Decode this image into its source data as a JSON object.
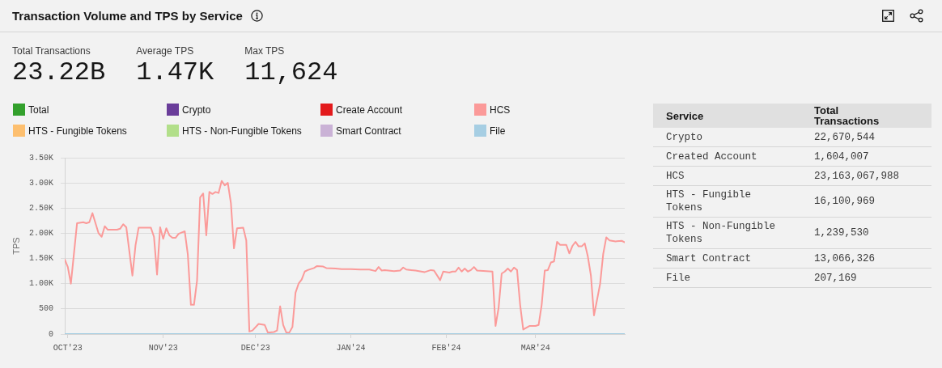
{
  "chart_data": [
    {
      "type": "other",
      "title": "Transaction Volume and TPS by Service",
      "categories": [
        "Total Transactions",
        "Average TPS",
        "Max TPS"
      ],
      "value_labels": [
        "23.22B",
        "1.47K",
        "11,624"
      ]
    },
    {
      "type": "line",
      "ylabel": "TPS",
      "grid": "y",
      "legend": "top",
      "x": [
        "2023-09-30",
        "2023-10-01",
        "2023-10-02",
        "2023-10-04",
        "2023-10-06",
        "2023-10-07",
        "2023-10-08",
        "2023-10-09",
        "2023-10-11",
        "2023-10-12",
        "2023-10-13",
        "2023-10-14",
        "2023-10-17",
        "2023-10-18",
        "2023-10-19",
        "2023-10-20",
        "2023-10-22",
        "2023-10-23",
        "2023-10-24",
        "2023-10-28",
        "2023-10-29",
        "2023-10-30",
        "2023-10-31",
        "2023-11-01",
        "2023-11-02",
        "2023-11-03",
        "2023-11-04",
        "2023-11-05",
        "2023-11-06",
        "2023-11-08",
        "2023-11-09",
        "2023-11-10",
        "2023-11-11",
        "2023-11-12",
        "2023-11-13",
        "2023-11-14",
        "2023-11-15",
        "2023-11-16",
        "2023-11-17",
        "2023-11-18",
        "2023-11-19",
        "2023-11-20",
        "2023-11-21",
        "2023-11-22",
        "2023-11-23",
        "2023-11-24",
        "2023-11-25",
        "2023-11-27",
        "2023-11-28",
        "2023-11-29",
        "2023-11-30",
        "2023-12-02",
        "2023-12-04",
        "2023-12-05",
        "2023-12-07",
        "2023-12-08",
        "2023-12-09",
        "2023-12-10",
        "2023-12-11",
        "2023-12-12",
        "2023-12-13",
        "2023-12-14",
        "2023-12-15",
        "2023-12-16",
        "2023-12-17",
        "2023-12-18",
        "2023-12-20",
        "2023-12-21",
        "2023-12-23",
        "2023-12-24",
        "2023-12-27",
        "2023-12-29",
        "2024-01-01",
        "2024-01-04",
        "2024-01-07",
        "2024-01-09",
        "2024-01-10",
        "2024-01-11",
        "2024-01-12",
        "2024-01-15",
        "2024-01-17",
        "2024-01-18",
        "2024-01-19",
        "2024-01-22",
        "2024-01-25",
        "2024-01-27",
        "2024-01-28",
        "2024-01-30",
        "2024-01-31",
        "2024-02-02",
        "2024-02-03",
        "2024-02-04",
        "2024-02-05",
        "2024-02-06",
        "2024-02-07",
        "2024-02-08",
        "2024-02-09",
        "2024-02-10",
        "2024-02-11",
        "2024-02-14",
        "2024-02-16",
        "2024-02-17",
        "2024-02-18",
        "2024-02-19",
        "2024-02-20",
        "2024-02-21",
        "2024-02-22",
        "2024-02-23",
        "2024-02-24",
        "2024-02-25",
        "2024-02-26",
        "2024-02-28",
        "2024-03-01",
        "2024-03-02",
        "2024-03-03",
        "2024-03-04",
        "2024-03-05",
        "2024-03-06",
        "2024-03-07",
        "2024-03-08",
        "2024-03-09",
        "2024-03-11",
        "2024-03-12",
        "2024-03-13",
        "2024-03-14",
        "2024-03-15",
        "2024-03-16",
        "2024-03-17",
        "2024-03-18",
        "2024-03-19",
        "2024-03-20",
        "2024-03-21",
        "2024-03-22",
        "2024-03-23",
        "2024-03-24",
        "2024-03-25",
        "2024-03-27",
        "2024-03-29",
        "2024-03-30"
      ],
      "xlim": [
        "2023-09-30",
        "2024-03-30"
      ],
      "xticks": [
        {
          "value": "2023-10-01",
          "label": "OCT'23"
        },
        {
          "value": "2023-11-01",
          "label": "NOV'23"
        },
        {
          "value": "2023-12-01",
          "label": "DEC'23"
        },
        {
          "value": "2024-01-01",
          "label": "JAN'24"
        },
        {
          "value": "2024-02-01",
          "label": "FEB'24"
        },
        {
          "value": "2024-03-01",
          "label": "MAR'24"
        }
      ],
      "ylim": [
        0,
        3500
      ],
      "yticks": [
        0,
        500,
        {
          "value": 1000,
          "label": "1.00K"
        },
        {
          "value": 1500,
          "label": "1.50K"
        },
        {
          "value": 2000,
          "label": "2.00K"
        },
        {
          "value": 2500,
          "label": "2.50K"
        },
        {
          "value": 3000,
          "label": "3.00K"
        },
        {
          "value": 3500,
          "label": "3.50K"
        }
      ],
      "series": [
        {
          "name": "Total",
          "color": "#33a02c",
          "values": [
            null,
            null,
            null,
            null,
            null,
            null,
            null,
            null,
            null,
            null,
            null,
            null,
            null,
            null,
            null,
            null,
            null,
            null,
            null,
            null,
            null,
            null,
            null,
            null,
            null,
            null,
            null,
            null,
            null,
            null,
            null,
            null,
            null,
            null,
            null,
            null,
            null,
            null,
            null,
            null,
            null,
            null,
            null,
            null,
            null,
            null,
            null,
            null,
            null,
            null,
            null,
            null,
            null,
            null,
            null,
            null,
            null,
            null,
            null,
            null,
            null,
            null,
            null,
            null,
            null,
            null,
            null,
            null,
            null,
            null,
            null,
            null,
            null,
            null,
            null,
            null,
            null,
            null,
            null,
            null,
            null,
            null,
            null,
            null,
            null,
            null,
            null,
            null,
            null,
            null,
            null,
            null,
            null,
            null,
            null,
            null,
            null,
            null,
            null,
            null,
            null,
            null,
            null,
            null,
            null,
            null,
            null,
            null,
            null,
            null,
            null,
            null,
            null,
            null,
            null,
            null,
            null,
            null,
            null,
            null,
            null,
            null,
            null,
            null,
            null,
            null,
            null,
            null,
            null,
            null,
            null,
            null,
            null,
            null,
            null,
            null,
            null,
            null,
            null
          ]
        },
        {
          "name": "Crypto",
          "color": "#6a3d9a",
          "values": [
            null,
            null,
            null,
            null,
            null,
            null,
            null,
            null,
            null,
            null,
            null,
            null,
            null,
            null,
            null,
            null,
            null,
            null,
            null,
            null,
            null,
            null,
            null,
            null,
            null,
            null,
            null,
            null,
            null,
            null,
            null,
            null,
            null,
            null,
            null,
            null,
            null,
            null,
            null,
            null,
            null,
            null,
            null,
            null,
            null,
            null,
            null,
            null,
            null,
            null,
            null,
            null,
            null,
            null,
            null,
            null,
            null,
            null,
            null,
            null,
            null,
            null,
            null,
            null,
            null,
            null,
            null,
            null,
            null,
            null,
            null,
            null,
            null,
            null,
            null,
            null,
            null,
            null,
            null,
            null,
            null,
            null,
            null,
            null,
            null,
            null,
            null,
            null,
            null,
            null,
            null,
            null,
            null,
            null,
            null,
            null,
            null,
            null,
            null,
            null,
            null,
            null,
            null,
            null,
            null,
            null,
            null,
            null,
            null,
            null,
            null,
            null,
            null,
            null,
            null,
            null,
            null,
            null,
            null,
            null,
            null,
            null,
            null,
            null,
            null,
            null,
            null,
            null,
            null,
            null,
            null,
            null,
            null,
            null,
            null,
            null,
            null,
            null,
            null
          ]
        },
        {
          "name": "Create Account",
          "color": "#e31a1c",
          "values": [
            null,
            null,
            null,
            null,
            null,
            null,
            null,
            null,
            null,
            null,
            null,
            null,
            null,
            null,
            null,
            null,
            null,
            null,
            null,
            null,
            null,
            null,
            null,
            null,
            null,
            null,
            null,
            null,
            null,
            null,
            null,
            null,
            null,
            null,
            null,
            null,
            null,
            null,
            null,
            null,
            null,
            null,
            null,
            null,
            null,
            null,
            null,
            null,
            null,
            null,
            null,
            null,
            null,
            null,
            null,
            null,
            null,
            null,
            null,
            null,
            null,
            null,
            null,
            null,
            null,
            null,
            null,
            null,
            null,
            null,
            null,
            null,
            null,
            null,
            null,
            null,
            null,
            null,
            null,
            null,
            null,
            null,
            null,
            null,
            null,
            null,
            null,
            null,
            null,
            null,
            null,
            null,
            null,
            null,
            null,
            null,
            null,
            null,
            null,
            null,
            null,
            null,
            null,
            null,
            null,
            null,
            null,
            null,
            null,
            null,
            null,
            null,
            null,
            null,
            null,
            null,
            null,
            null,
            null,
            null,
            null,
            null,
            null,
            null,
            null,
            null,
            null,
            null,
            null,
            null,
            null,
            null,
            null,
            null,
            null,
            null,
            null,
            null,
            null
          ]
        },
        {
          "name": "HCS",
          "color": "#fb9a99",
          "values": [
            1480,
            1330,
            1000,
            2200,
            2220,
            2200,
            2220,
            2400,
            2000,
            1930,
            2140,
            2070,
            2070,
            2090,
            2180,
            2120,
            1160,
            1760,
            2110,
            2110,
            1930,
            1180,
            2120,
            1890,
            2100,
            1960,
            1910,
            1910,
            1990,
            2040,
            1580,
            580,
            580,
            1060,
            2710,
            2790,
            1960,
            2820,
            2780,
            2820,
            2800,
            3040,
            2950,
            3000,
            2600,
            1700,
            2100,
            2110,
            1860,
            50,
            70,
            200,
            180,
            30,
            40,
            70,
            550,
            180,
            30,
            30,
            140,
            820,
            1000,
            1080,
            1240,
            1270,
            1310,
            1350,
            1340,
            1310,
            1300,
            1290,
            1290,
            1280,
            1280,
            1250,
            1330,
            1260,
            1270,
            1250,
            1260,
            1320,
            1280,
            1260,
            1230,
            1270,
            1260,
            1070,
            1240,
            1220,
            1240,
            1240,
            1320,
            1240,
            1300,
            1240,
            1270,
            1330,
            1260,
            1250,
            1240,
            160,
            520,
            1200,
            1240,
            1300,
            1240,
            1320,
            1270,
            580,
            90,
            160,
            160,
            180,
            580,
            1260,
            1270,
            1420,
            1440,
            1830,
            1770,
            1770,
            1600,
            1750,
            1830,
            1740,
            1740,
            1800,
            1540,
            1160,
            370,
            680,
            1000,
            1590,
            1920,
            1860,
            1840,
            1850,
            1820
          ]
        },
        {
          "name": "HTS - Fungible Tokens",
          "color": "#fdbf6f",
          "values": [
            null,
            null,
            null,
            null,
            null,
            null,
            null,
            null,
            null,
            null,
            null,
            null,
            null,
            null,
            null,
            null,
            null,
            null,
            null,
            null,
            null,
            null,
            null,
            null,
            null,
            null,
            null,
            null,
            null,
            null,
            null,
            null,
            null,
            null,
            null,
            null,
            null,
            null,
            null,
            null,
            null,
            null,
            null,
            null,
            null,
            null,
            null,
            null,
            null,
            null,
            null,
            null,
            null,
            null,
            null,
            null,
            null,
            null,
            null,
            null,
            null,
            null,
            null,
            null,
            null,
            null,
            null,
            null,
            null,
            null,
            null,
            null,
            null,
            null,
            null,
            null,
            null,
            null,
            null,
            null,
            null,
            null,
            null,
            null,
            null,
            null,
            null,
            null,
            null,
            null,
            null,
            null,
            null,
            null,
            null,
            null,
            null,
            null,
            null,
            null,
            null,
            null,
            null,
            null,
            null,
            null,
            null,
            null,
            null,
            null,
            null,
            null,
            null,
            null,
            null,
            null,
            null,
            null,
            null,
            null,
            null,
            null,
            null,
            null,
            null,
            null,
            null,
            null,
            null,
            null,
            null,
            null,
            null,
            null,
            null,
            null,
            null,
            null,
            null
          ]
        },
        {
          "name": "HTS - Non-Fungible Tokens",
          "color": "#b2df8a",
          "values": [
            null,
            null,
            null,
            null,
            null,
            null,
            null,
            null,
            null,
            null,
            null,
            null,
            null,
            null,
            null,
            null,
            null,
            null,
            null,
            null,
            null,
            null,
            null,
            null,
            null,
            null,
            null,
            null,
            null,
            null,
            null,
            null,
            null,
            null,
            null,
            null,
            null,
            null,
            null,
            null,
            null,
            null,
            null,
            null,
            null,
            null,
            null,
            null,
            null,
            null,
            null,
            null,
            null,
            null,
            null,
            null,
            null,
            null,
            null,
            null,
            null,
            null,
            null,
            null,
            null,
            null,
            null,
            null,
            null,
            null,
            null,
            null,
            null,
            null,
            null,
            null,
            null,
            null,
            null,
            null,
            null,
            null,
            null,
            null,
            null,
            null,
            null,
            null,
            null,
            null,
            null,
            null,
            null,
            null,
            null,
            null,
            null,
            null,
            null,
            null,
            null,
            null,
            null,
            null,
            null,
            null,
            null,
            null,
            null,
            null,
            null,
            null,
            null,
            null,
            null,
            null,
            null,
            null,
            null,
            null,
            null,
            null,
            null,
            null,
            null,
            null,
            null,
            null,
            null,
            null,
            null,
            null,
            null,
            null,
            null,
            null,
            null,
            null,
            null
          ]
        },
        {
          "name": "Smart Contract",
          "color": "#cab2d6",
          "values": [
            null,
            null,
            null,
            null,
            null,
            null,
            null,
            null,
            null,
            null,
            null,
            null,
            null,
            null,
            null,
            null,
            null,
            null,
            null,
            null,
            null,
            null,
            null,
            null,
            null,
            null,
            null,
            null,
            null,
            null,
            null,
            null,
            null,
            null,
            null,
            null,
            null,
            null,
            null,
            null,
            null,
            null,
            null,
            null,
            null,
            null,
            null,
            null,
            null,
            null,
            null,
            null,
            null,
            null,
            null,
            null,
            null,
            null,
            null,
            null,
            null,
            null,
            null,
            null,
            null,
            null,
            null,
            null,
            null,
            null,
            null,
            null,
            null,
            null,
            null,
            null,
            null,
            null,
            null,
            null,
            null,
            null,
            null,
            null,
            null,
            null,
            null,
            null,
            null,
            null,
            null,
            null,
            null,
            null,
            null,
            null,
            null,
            null,
            null,
            null,
            null,
            null,
            null,
            null,
            null,
            null,
            null,
            null,
            null,
            null,
            null,
            null,
            null,
            null,
            null,
            null,
            null,
            null,
            null,
            null,
            null,
            null,
            null,
            null,
            null,
            null,
            null,
            null,
            null,
            null,
            null,
            null,
            null,
            null,
            null,
            null,
            null,
            null,
            null
          ]
        },
        {
          "name": "File",
          "color": "#a6cee3",
          "x": [
            "2023-09-30",
            "2024-03-30"
          ],
          "values": [
            0,
            0
          ]
        }
      ]
    },
    {
      "type": "other",
      "xlabel": "Service",
      "ylabel": "Total Transactions",
      "categories": [
        "Crypto",
        "Created Account",
        "HCS",
        "HTS - Fungible Tokens",
        "HTS - Non-Fungible Tokens",
        "Smart Contract",
        "File"
      ],
      "value_labels": [
        "22,670,544",
        "1,604,007",
        "23,163,067,988",
        "16,100,969",
        "1,239,530",
        "13,066,326",
        "207,169"
      ]
    }
  ]
}
